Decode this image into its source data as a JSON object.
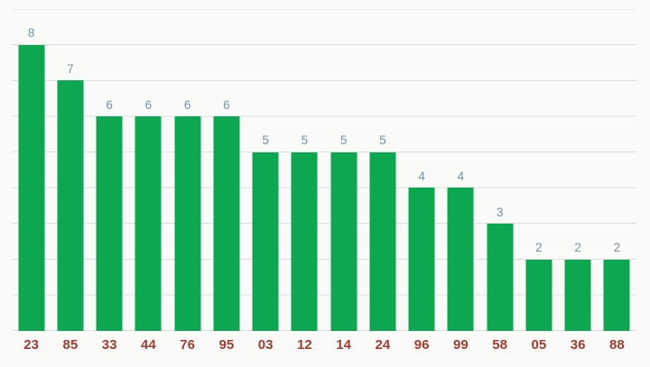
{
  "chart_data": {
    "type": "bar",
    "title": "",
    "xlabel": "",
    "ylabel": "",
    "categories": [
      "23",
      "85",
      "33",
      "44",
      "76",
      "95",
      "03",
      "12",
      "14",
      "24",
      "96",
      "99",
      "58",
      "05",
      "36",
      "88"
    ],
    "values": [
      8,
      7,
      6,
      6,
      6,
      6,
      5,
      5,
      5,
      5,
      4,
      4,
      3,
      2,
      2,
      2
    ],
    "value_labels": [
      "8",
      "7",
      "6",
      "6",
      "6",
      "6",
      "5",
      "5",
      "5",
      "5",
      "4",
      "4",
      "3",
      "2",
      "2",
      "2"
    ],
    "ylim": [
      0,
      9
    ],
    "grid": true,
    "legend_position": "none",
    "colors": {
      "bar": "#0ca750",
      "value_label": "#7491a5",
      "category_label": "#a13d30",
      "gridline": "#dedede",
      "background": "#fafaf9"
    }
  }
}
